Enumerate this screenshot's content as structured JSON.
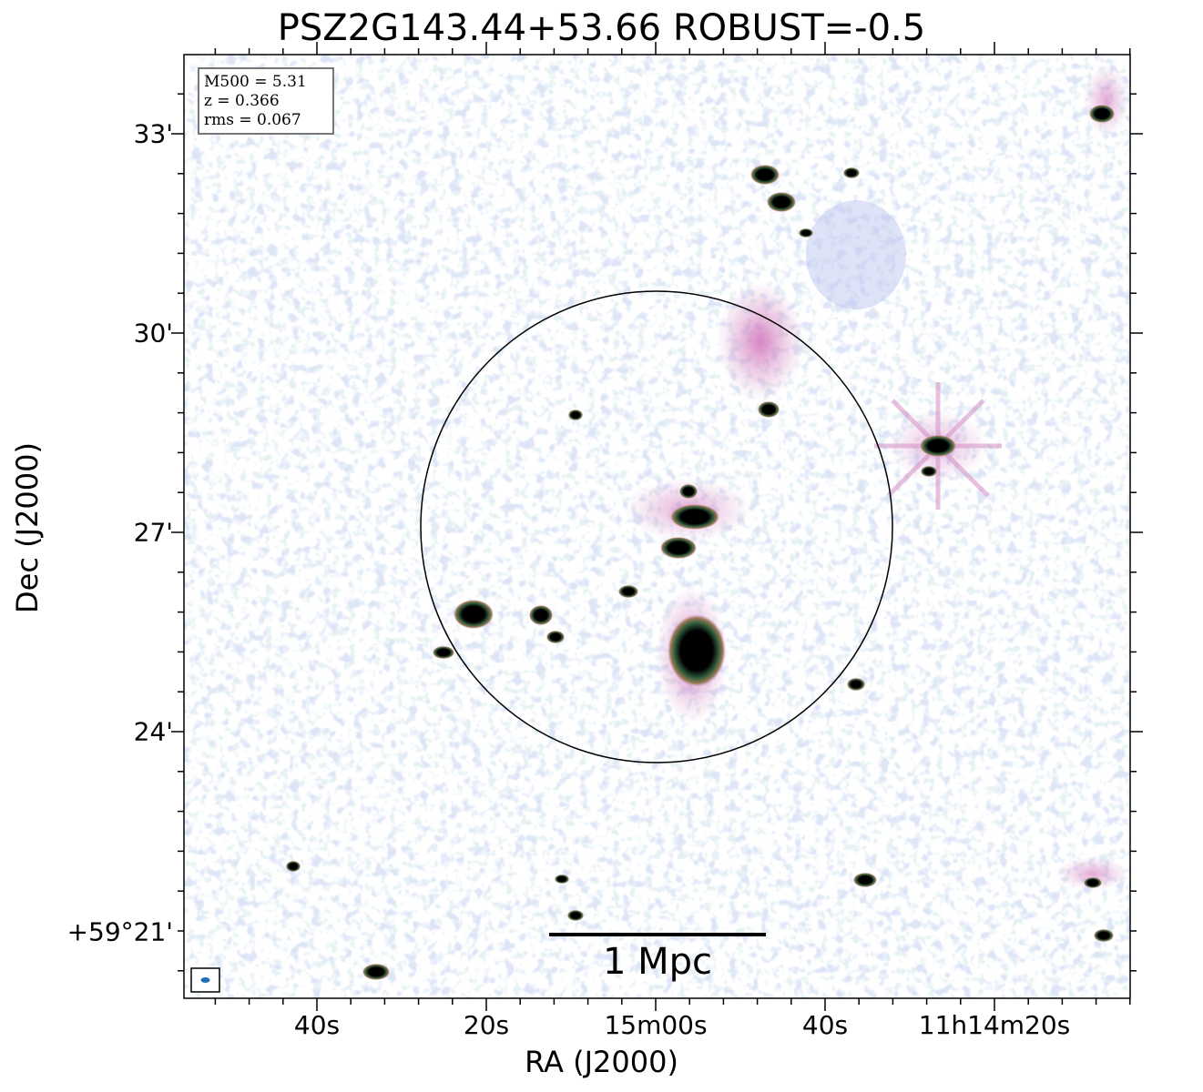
{
  "figure": {
    "title": "PSZ2G143.44+53.66 ROBUST=-0.5",
    "xlabel": "RA (J2000)",
    "ylabel": "Dec (J2000)",
    "ra_ticks": [
      "40s",
      "20s",
      "15m00s",
      "40s",
      "11h14m20s"
    ],
    "dec_ticks": [
      "33'",
      "30'",
      "27'",
      "24'",
      "+59°21'"
    ],
    "info": {
      "m500": "M500 = 5.31",
      "z": "z = 0.366",
      "rms": "rms = 0.067"
    },
    "scalebar_label": "1 Mpc",
    "colors": {
      "background": "#ffffff",
      "noise_light": "#c6d8ee",
      "noise_blue": "#b7c2ee",
      "diffuse_pink": "#d58fc6",
      "source_green": "#2f5a3a",
      "source_core": "#000000",
      "beam": "#1f6fb4"
    }
  }
}
